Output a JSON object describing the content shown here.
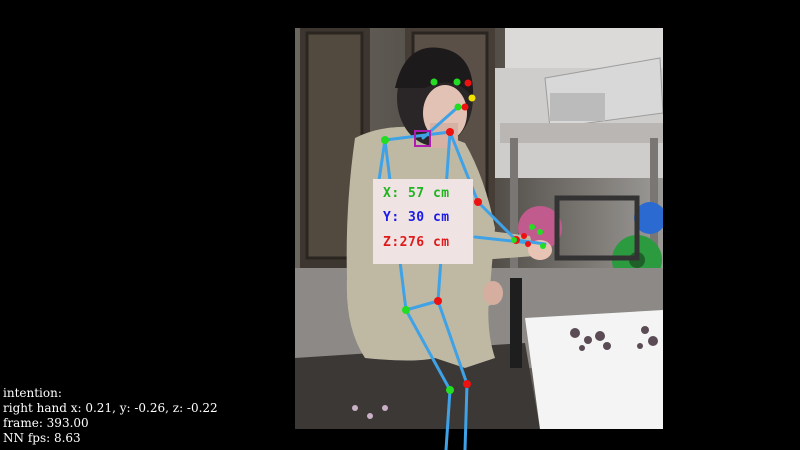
{
  "overlay": {
    "x_label": "X: 57 cm",
    "y_label": "Y: 30 cm",
    "z_label": "Z:276 cm",
    "x_color": "#1fb51f",
    "y_color": "#1a1ae6",
    "z_color": "#e01a1a"
  },
  "info": {
    "intention": "intention:",
    "right_hand": "right hand x: 0.21, y: -0.26, z: -0.22",
    "frame": "frame: 393.00",
    "fps": "NN fps: 8.63"
  },
  "colors": {
    "skeleton": "#3fa2e6",
    "joint_left": "#22dd22",
    "joint_right": "#ee1111",
    "marker": "#b01ab0",
    "background": "#000000"
  }
}
